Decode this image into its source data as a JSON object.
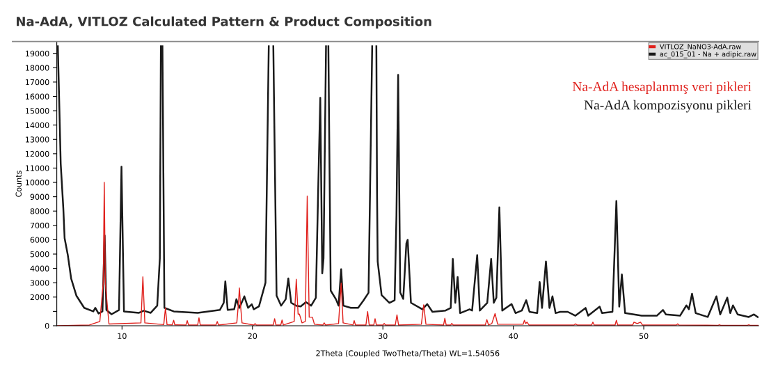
{
  "chart_data": {
    "type": "line",
    "title": "Na-AdA, VITLOZ Calculated Pattern & Product Composition",
    "xlabel": "2Theta (Coupled TwoTheta/Theta) WL=1.54056",
    "ylabel": "Counts",
    "xlim": [
      5,
      58.8
    ],
    "ylim": [
      0,
      19800
    ],
    "xticks": [
      10,
      20,
      30,
      40,
      50
    ],
    "yticks": [
      0,
      {
        "value": 1000,
        "label": null
      },
      2000,
      3000,
      4000,
      5000,
      6000,
      7000,
      8000,
      9000,
      10000,
      11000,
      12000,
      13000,
      14000,
      15000,
      16000,
      17000,
      18000,
      19000
    ],
    "grid": false,
    "legend": "top right",
    "marker": "none",
    "line_style": "solid",
    "annotations": [
      "Na-AdA hesaplanmış veri pikleri",
      "Na-AdA kompozisyonu pikleri"
    ],
    "series": [
      {
        "name": "VITLOZ_NaNO3-AdA.raw",
        "color": "#e0201c",
        "x": [
          5.0,
          7.5,
          8.3,
          8.56,
          8.64,
          8.72,
          9.0,
          11.45,
          11.6,
          11.75,
          13.2,
          13.33,
          13.45,
          13.85,
          13.96,
          14.05,
          14.9,
          15.0,
          15.1,
          15.8,
          15.9,
          16.0,
          17.2,
          17.3,
          17.4,
          18.8,
          18.92,
          19.0,
          19.08,
          19.2,
          20.1,
          20.2,
          20.3,
          21.6,
          21.7,
          21.8,
          22.17,
          22.27,
          22.37,
          23.2,
          23.36,
          23.5,
          23.6,
          23.8,
          24.05,
          24.2,
          24.35,
          24.6,
          24.75,
          25.4,
          25.5,
          25.6,
          26.6,
          26.8,
          26.95,
          27.7,
          27.8,
          27.9,
          28.7,
          28.83,
          28.95,
          29.3,
          29.4,
          29.5,
          30.0,
          30.1,
          30.2,
          30.95,
          31.08,
          31.2,
          32.95,
          33.13,
          33.3,
          34.65,
          34.75,
          34.85,
          35.2,
          35.28,
          35.4,
          37.85,
          37.97,
          38.1,
          38.35,
          38.6,
          38.8,
          40.75,
          40.85,
          40.95,
          41.05,
          41.2,
          44.65,
          44.76,
          44.9,
          46.0,
          46.1,
          46.2,
          47.8,
          47.9,
          48.0,
          49.15,
          49.25,
          49.5,
          49.75,
          49.9,
          52.5,
          52.6,
          52.7,
          55.7,
          55.8,
          55.9,
          57.95,
          58.05,
          58.15,
          58.8
        ],
        "values": [
          0,
          50,
          300,
          2980,
          10000,
          2980,
          120,
          200,
          3410,
          200,
          80,
          1250,
          80,
          60,
          380,
          60,
          50,
          350,
          50,
          50,
          550,
          50,
          50,
          290,
          50,
          200,
          1500,
          2630,
          1500,
          200,
          50,
          150,
          50,
          50,
          490,
          50,
          50,
          400,
          50,
          300,
          3240,
          810,
          810,
          200,
          300,
          9050,
          600,
          590,
          100,
          50,
          200,
          50,
          150,
          2980,
          200,
          50,
          350,
          50,
          50,
          990,
          50,
          50,
          490,
          50,
          50,
          160,
          50,
          50,
          760,
          50,
          100,
          1460,
          100,
          50,
          520,
          50,
          50,
          160,
          50,
          50,
          430,
          50,
          150,
          850,
          100,
          100,
          380,
          150,
          250,
          50,
          50,
          130,
          50,
          50,
          250,
          50,
          50,
          380,
          50,
          50,
          250,
          150,
          250,
          50,
          50,
          130,
          50,
          30,
          70,
          30,
          30,
          70,
          30,
          30
        ]
      },
      {
        "name": "ac_015_01 - Na + adipic.raw",
        "color": "#1a1a1a",
        "x": [
          5.08,
          5.2,
          5.3,
          5.5,
          5.6,
          5.85,
          6.1,
          6.5,
          7.1,
          7.8,
          7.95,
          8.2,
          8.5,
          8.67,
          8.8,
          9.2,
          9.77,
          9.96,
          10.15,
          11.3,
          11.67,
          12.2,
          12.7,
          12.9,
          12.98,
          13.05,
          13.1,
          13.25,
          13.97,
          15.8,
          17.5,
          17.8,
          17.92,
          18.1,
          18.6,
          18.77,
          19.0,
          19.38,
          19.66,
          19.95,
          20.1,
          20.5,
          21.0,
          21.25,
          21.42,
          21.6,
          21.85,
          22.2,
          22.55,
          22.75,
          22.97,
          23.35,
          23.7,
          24.1,
          24.5,
          24.86,
          25.05,
          25.2,
          25.35,
          25.45,
          25.64,
          25.73,
          25.82,
          26.0,
          26.4,
          26.6,
          26.8,
          26.97,
          27.54,
          28.1,
          28.5,
          28.9,
          29.18,
          29.35,
          29.5,
          29.55,
          29.6,
          29.9,
          30.5,
          30.9,
          31.04,
          31.17,
          31.33,
          31.56,
          31.8,
          31.9,
          32.15,
          33.03,
          33.4,
          33.8,
          34.8,
          35.2,
          35.36,
          35.55,
          35.73,
          35.92,
          36.65,
          36.84,
          37.23,
          37.43,
          38.0,
          38.3,
          38.5,
          38.7,
          38.93,
          39.15,
          39.58,
          39.87,
          40.17,
          40.65,
          40.99,
          41.24,
          41.83,
          42.02,
          42.2,
          42.5,
          42.77,
          43.0,
          43.24,
          43.6,
          44.17,
          44.76,
          45.54,
          45.74,
          46.62,
          46.8,
          47.6,
          47.9,
          48.12,
          48.32,
          48.57,
          49.84,
          51.0,
          51.47,
          51.7,
          52.78,
          53.27,
          53.46,
          53.7,
          53.98,
          54.9,
          55.57,
          55.86,
          56.4,
          56.63,
          56.84,
          57.2,
          58.05,
          58.45,
          58.74
        ],
        "values": [
          19500,
          15100,
          11300,
          8200,
          6100,
          4900,
          3300,
          2100,
          1250,
          1000,
          1250,
          850,
          1000,
          6300,
          1100,
          800,
          1100,
          11100,
          1000,
          900,
          1050,
          900,
          1400,
          4700,
          19500,
          null,
          19500,
          1250,
          1000,
          900,
          1100,
          1600,
          3100,
          1100,
          1150,
          1850,
          1250,
          2050,
          1250,
          1500,
          1150,
          1350,
          3000,
          19500,
          null,
          19500,
          2100,
          1400,
          1850,
          3300,
          1600,
          1400,
          1350,
          1650,
          1400,
          1950,
          9900,
          15900,
          3650,
          4700,
          19500,
          null,
          19500,
          2450,
          1850,
          1400,
          3950,
          1400,
          1250,
          1250,
          1750,
          2300,
          19500,
          null,
          19500,
          9510,
          4480,
          2140,
          1600,
          1780,
          7720,
          17500,
          2320,
          1870,
          5740,
          6000,
          1600,
          1150,
          1510,
          970,
          1060,
          1240,
          4660,
          1600,
          3400,
          880,
          1150,
          1060,
          4930,
          1060,
          1600,
          4660,
          1600,
          1960,
          8260,
          1060,
          1330,
          1510,
          880,
          1060,
          1780,
          970,
          880,
          3040,
          1240,
          4480,
          1240,
          2050,
          880,
          970,
          970,
          700,
          1240,
          700,
          1330,
          880,
          970,
          8700,
          1330,
          3580,
          880,
          700,
          700,
          1100,
          790,
          700,
          1420,
          1150,
          2230,
          880,
          610,
          2050,
          790,
          1960,
          880,
          1420,
          790,
          610,
          790,
          600
        ]
      }
    ]
  }
}
